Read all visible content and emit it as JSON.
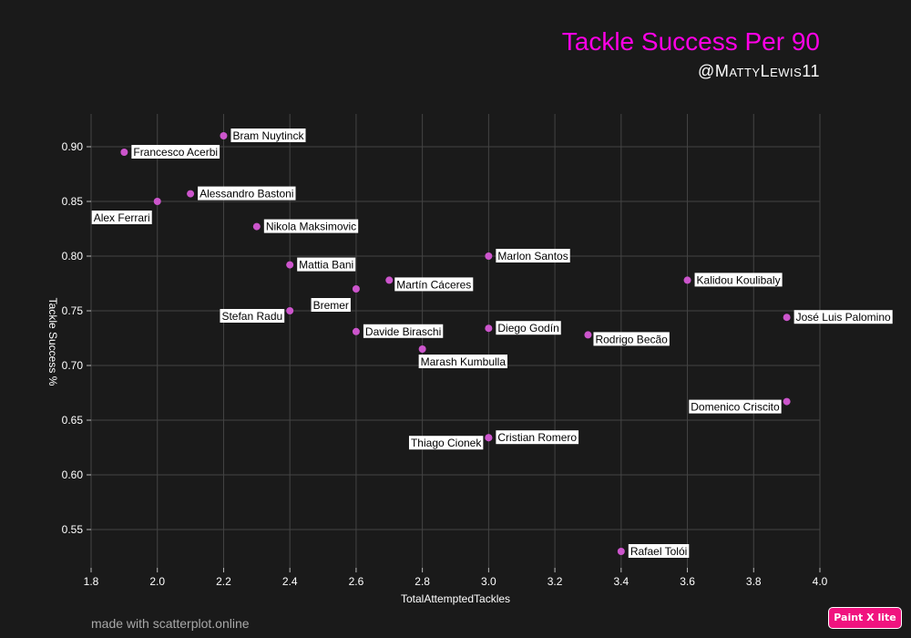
{
  "header": {
    "title": "Tackle Success Per 90",
    "subtitle": "@MattyLewis11"
  },
  "footer": {
    "credit": "made with scatterplot.online",
    "badge": "Paint X lite"
  },
  "colors": {
    "background": "#1a1a1a",
    "title": "#ff00e6",
    "point": "#cc55cc",
    "grid": "#444444",
    "label_bg": "#ffffff",
    "label_text": "#000000",
    "badge": "#f0137f"
  },
  "chart_data": {
    "type": "scatter",
    "title": "Tackle Success Per 90",
    "xlabel": "TotalAttemptedTackles",
    "ylabel": "Tackle Success %",
    "xlim": [
      1.8,
      4.0
    ],
    "ylim": [
      0.515,
      0.93
    ],
    "grid": true,
    "x_ticks": [
      "1.8",
      "2.0",
      "2.2",
      "2.4",
      "2.6",
      "2.8",
      "3.0",
      "3.2",
      "3.4",
      "3.6",
      "3.8",
      "4.0"
    ],
    "y_ticks": [
      "0.55",
      "0.60",
      "0.65",
      "0.70",
      "0.75",
      "0.80",
      "0.85",
      "0.90"
    ],
    "points": [
      {
        "label": "Bram Nuytinck",
        "x": 2.2,
        "y": 0.91,
        "label_side": "right"
      },
      {
        "label": "Francesco Acerbi",
        "x": 1.9,
        "y": 0.895,
        "label_side": "right"
      },
      {
        "label": "Alessandro Bastoni",
        "x": 2.1,
        "y": 0.857,
        "label_side": "right"
      },
      {
        "label": "Alex Ferrari",
        "x": 2.0,
        "y": 0.85,
        "label_side": "below-left"
      },
      {
        "label": "Nikola Maksimovic",
        "x": 2.3,
        "y": 0.827,
        "label_side": "right"
      },
      {
        "label": "Mattia Bani",
        "x": 2.4,
        "y": 0.792,
        "label_side": "right"
      },
      {
        "label": "Marlon Santos",
        "x": 3.0,
        "y": 0.8,
        "label_side": "right"
      },
      {
        "label": "Martín Cáceres",
        "x": 2.7,
        "y": 0.778,
        "label_side": "right-below"
      },
      {
        "label": "Kalidou Koulibaly",
        "x": 3.6,
        "y": 0.778,
        "label_side": "right"
      },
      {
        "label": "Bremer",
        "x": 2.6,
        "y": 0.77,
        "label_side": "below-left"
      },
      {
        "label": "Stefan Radu",
        "x": 2.4,
        "y": 0.75,
        "label_side": "left"
      },
      {
        "label": "José Luis Palomino",
        "x": 3.9,
        "y": 0.744,
        "label_side": "right"
      },
      {
        "label": "Davide Biraschi",
        "x": 2.6,
        "y": 0.731,
        "label_side": "right"
      },
      {
        "label": "Diego Godín",
        "x": 3.0,
        "y": 0.734,
        "label_side": "right"
      },
      {
        "label": "Rodrigo Becão",
        "x": 3.3,
        "y": 0.728,
        "label_side": "right-below"
      },
      {
        "label": "Marash Kumbulla",
        "x": 2.8,
        "y": 0.715,
        "label_side": "below"
      },
      {
        "label": "Domenico Criscito",
        "x": 3.9,
        "y": 0.667,
        "label_side": "left"
      },
      {
        "label": "Thiago Cionek",
        "x": 3.0,
        "y": 0.634,
        "label_side": "left"
      },
      {
        "label": "Cristian Romero",
        "x": 3.0,
        "y": 0.634,
        "label_side": "right"
      },
      {
        "label": "Rafael Tolói",
        "x": 3.4,
        "y": 0.53,
        "label_side": "right"
      }
    ]
  }
}
